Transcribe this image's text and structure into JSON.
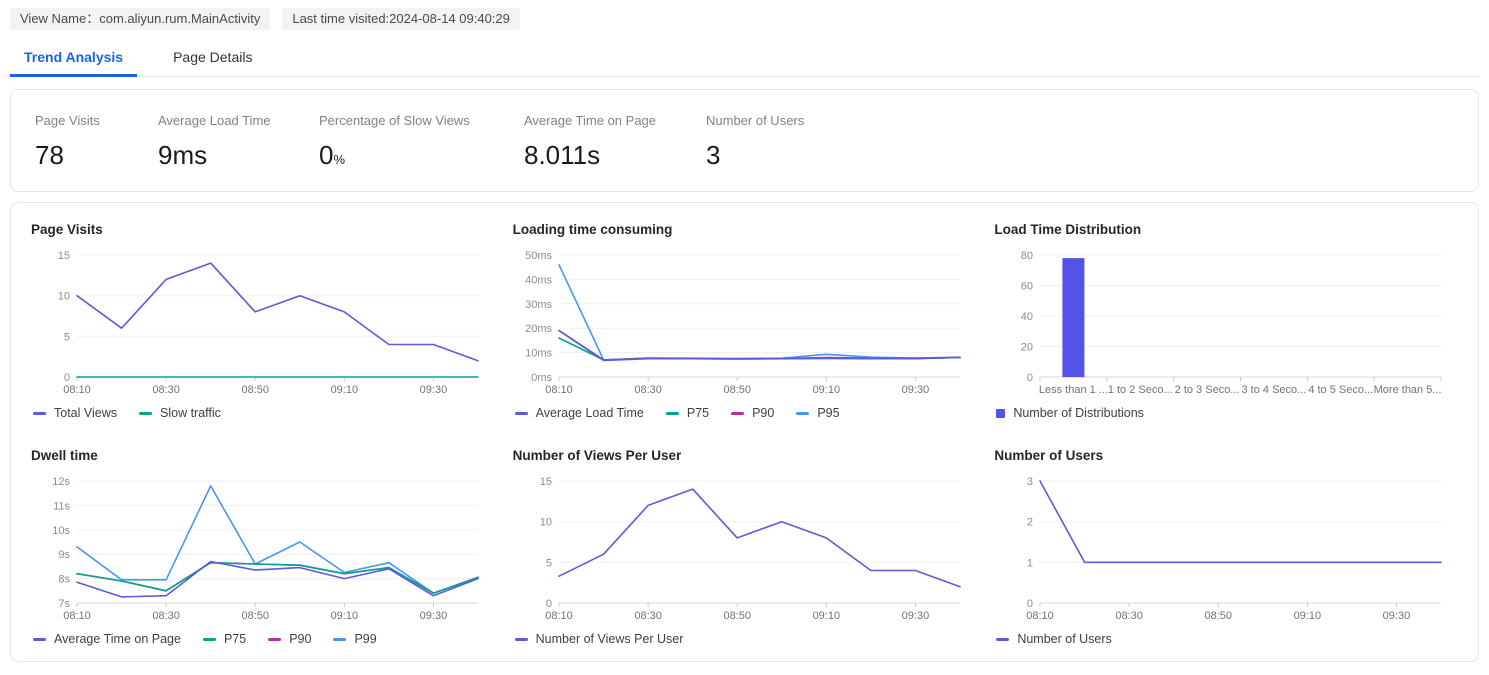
{
  "header": {
    "view_name_badge": "View Name：com.aliyun.rum.MainActivity",
    "last_visited_badge": "Last time visited:2024-08-14 09:40:29"
  },
  "tabs": [
    {
      "label": "Trend Analysis",
      "active": true
    },
    {
      "label": "Page Details",
      "active": false
    }
  ],
  "stats": [
    {
      "label": "Page Visits",
      "value": "78"
    },
    {
      "label": "Average Load Time",
      "value": "9ms"
    },
    {
      "label": "Percentage of Slow Views",
      "value": "0",
      "suffix": "%"
    },
    {
      "label": "Average Time on Page",
      "value": "8.011s"
    },
    {
      "label": "Number of Users",
      "value": "3"
    }
  ],
  "colors": {
    "accent_blue": "#1765e5",
    "series_purple": "#5b5be0",
    "series_teal": "#00a58c",
    "series_magenta": "#be27ae",
    "series_lightblue": "#4796f2",
    "bar_indigo": "#5452e8"
  },
  "chart_data": [
    {
      "type": "line",
      "title": "Page Visits",
      "x": [
        "08:10",
        "08:20",
        "08:30",
        "08:40",
        "08:50",
        "09:00",
        "09:10",
        "09:20",
        "09:30",
        "09:40"
      ],
      "x_tick_indices": [
        0,
        2,
        4,
        6,
        8
      ],
      "yticks": [
        0,
        5,
        10,
        15
      ],
      "ytick_suffix": "",
      "ylim": [
        0,
        15
      ],
      "series": [
        {
          "name": "Total Views",
          "color": "#5b5be0",
          "values": [
            10,
            6,
            12,
            14,
            8,
            10,
            8,
            4,
            4,
            2
          ]
        },
        {
          "name": "Slow traffic",
          "color": "#00a58c",
          "values": [
            0,
            0,
            0,
            0,
            0,
            0,
            0,
            0,
            0,
            0
          ]
        }
      ]
    },
    {
      "type": "line",
      "title": "Loading time consuming",
      "x": [
        "08:10",
        "08:20",
        "08:30",
        "08:40",
        "08:50",
        "09:00",
        "09:10",
        "09:20",
        "09:30",
        "09:40"
      ],
      "x_tick_indices": [
        0,
        2,
        4,
        6,
        8
      ],
      "yticks": [
        0,
        10,
        20,
        30,
        40,
        50
      ],
      "ytick_suffix": "ms",
      "ylim": [
        0,
        50
      ],
      "series": [
        {
          "name": "Average Load Time",
          "color": "#5b5be0",
          "values": [
            19,
            6.8,
            7.5,
            7.5,
            7.4,
            7.5,
            7.6,
            7.5,
            7.5,
            8
          ]
        },
        {
          "name": "P75",
          "color": "#00a58c",
          "values": [
            16,
            7,
            7.6,
            7.5,
            7.4,
            7.5,
            7.7,
            7.5,
            7.6,
            8
          ]
        },
        {
          "name": "P90",
          "color": "#be27ae",
          "values": [
            19,
            7,
            7.7,
            7.6,
            7.5,
            7.6,
            8,
            7.7,
            7.7,
            8
          ]
        },
        {
          "name": "P95",
          "color": "#4796f2",
          "values": [
            46,
            7,
            7.8,
            7.7,
            7.6,
            7.7,
            9.3,
            8.1,
            7.8,
            8.1
          ]
        }
      ]
    },
    {
      "type": "bar",
      "title": "Load Time Distribution",
      "categories": [
        "Less than 1 ...",
        "1 to 2 Seco...",
        "2 to 3 Seco...",
        "3 to 4 Seco...",
        "4 to 5 Seco...",
        "More than 5..."
      ],
      "yticks": [
        0,
        20,
        40,
        60,
        80
      ],
      "ytick_suffix": "",
      "ylim": [
        0,
        80
      ],
      "series": [
        {
          "name": "Number of Distributions",
          "color": "#5452e8",
          "values": [
            78,
            0,
            0,
            0,
            0,
            0
          ]
        }
      ]
    },
    {
      "type": "line",
      "title": "Dwell time",
      "x": [
        "08:10",
        "08:20",
        "08:30",
        "08:40",
        "08:50",
        "09:00",
        "09:10",
        "09:20",
        "09:30",
        "09:40"
      ],
      "x_tick_indices": [
        0,
        2,
        4,
        6,
        8
      ],
      "yticks": [
        7,
        8,
        9,
        10,
        11,
        12
      ],
      "ytick_suffix": "s",
      "ylim": [
        7,
        12
      ],
      "series": [
        {
          "name": "Average Time on Page",
          "color": "#5b5be0",
          "values": [
            7.85,
            7.25,
            7.3,
            8.7,
            8.35,
            8.45,
            8,
            8.4,
            7.3,
            8
          ]
        },
        {
          "name": "P75",
          "color": "#00a58c",
          "values": [
            8.2,
            7.9,
            7.5,
            8.65,
            8.6,
            8.55,
            8.2,
            8.45,
            7.4,
            8.05
          ]
        },
        {
          "name": "P90",
          "color": "#be27ae",
          "values": [
            8.2,
            7.9,
            7.5,
            8.65,
            8.6,
            8.55,
            8.2,
            8.45,
            7.4,
            8.05
          ]
        },
        {
          "name": "P99",
          "color": "#4796f2",
          "values": [
            9.3,
            7.95,
            7.95,
            11.8,
            8.6,
            9.5,
            8.25,
            8.65,
            7.4,
            8.05
          ]
        }
      ]
    },
    {
      "type": "line",
      "title": "Number of Views Per User",
      "x": [
        "08:10",
        "08:20",
        "08:30",
        "08:40",
        "08:50",
        "09:00",
        "09:10",
        "09:20",
        "09:30",
        "09:40"
      ],
      "x_tick_indices": [
        0,
        2,
        4,
        6,
        8
      ],
      "yticks": [
        0,
        5,
        10,
        15
      ],
      "ytick_suffix": "",
      "ylim": [
        0,
        15
      ],
      "series": [
        {
          "name": "Number of Views Per User",
          "color": "#5b5be0",
          "values": [
            3.3,
            6,
            12,
            14,
            8,
            10,
            8,
            4,
            4,
            2
          ]
        }
      ]
    },
    {
      "type": "line",
      "title": "Number of Users",
      "x": [
        "08:10",
        "08:20",
        "08:30",
        "08:40",
        "08:50",
        "09:00",
        "09:10",
        "09:20",
        "09:30",
        "09:40"
      ],
      "x_tick_indices": [
        0,
        2,
        4,
        6,
        8
      ],
      "yticks": [
        0,
        1,
        2,
        3
      ],
      "ytick_suffix": "",
      "ylim": [
        0,
        3
      ],
      "series": [
        {
          "name": "Number of Users",
          "color": "#5b5be0",
          "values": [
            3,
            1,
            1,
            1,
            1,
            1,
            1,
            1,
            1,
            1
          ]
        }
      ]
    }
  ]
}
